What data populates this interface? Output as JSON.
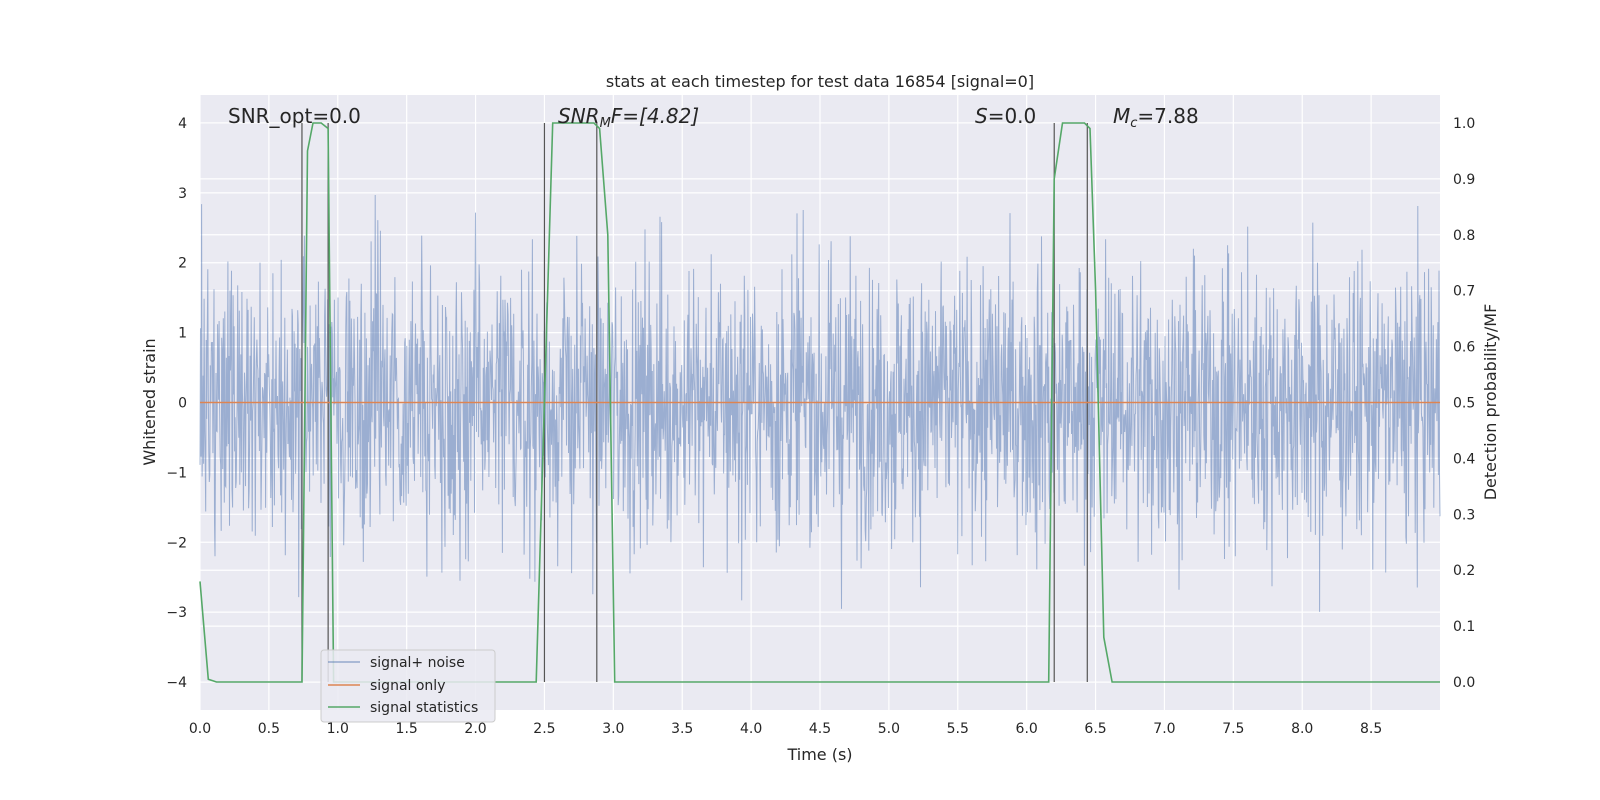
{
  "chart_data": {
    "type": "line",
    "title": "stats at each timestep for test data 16854 [signal=0]",
    "xlabel": "Time (s)",
    "ylabel_left": "Whitened strain",
    "ylabel_right": "Detection probability/MF",
    "xlim": [
      0.0,
      9.0
    ],
    "ylim_left": [
      -4.4,
      4.4
    ],
    "ylim_right": [
      -0.05,
      1.05
    ],
    "x_ticks": [
      "0.0",
      "0.5",
      "1.0",
      "1.5",
      "2.0",
      "2.5",
      "3.0",
      "3.5",
      "4.0",
      "4.5",
      "5.0",
      "5.5",
      "6.0",
      "6.5",
      "7.0",
      "7.5",
      "8.0",
      "8.5"
    ],
    "y_ticks_left": [
      "−4",
      "−3",
      "−2",
      "−1",
      "0",
      "1",
      "2",
      "3",
      "4"
    ],
    "y_ticks_right": [
      "0.0",
      "0.1",
      "0.2",
      "0.3",
      "0.4",
      "0.5",
      "0.6",
      "0.7",
      "0.8",
      "0.9",
      "1.0"
    ],
    "grid": true,
    "legend_position": "lower-left",
    "colors": {
      "background": "#eaeaf2",
      "signal_noise": "#4c72b0",
      "signal_only": "#dd8452",
      "signal_statistics": "#55a868",
      "markers": "#555555"
    },
    "annotations": {
      "snr_opt": "SNR_opt=0.0",
      "snr_mf_prefix": "SNR",
      "snr_mf_sub": "M",
      "snr_mf_rest": "F=[4.82]",
      "s_italic": "S",
      "s_rest": "=0.0",
      "mc_italic": "M",
      "mc_sub": "c",
      "mc_rest": "=7.88"
    },
    "series": [
      {
        "name": "signal+ noise",
        "kind": "noise",
        "duration_s": 9.0,
        "envelope_sigma": 1.0,
        "display_range": [
          -3.4,
          3.9
        ]
      },
      {
        "name": "signal only",
        "kind": "line",
        "x": [
          0.0,
          9.0
        ],
        "y": [
          0.0,
          0.0
        ]
      },
      {
        "name": "signal statistics",
        "kind": "line",
        "axis": "right",
        "x": [
          0.0,
          0.06,
          0.12,
          0.2,
          0.74,
          0.78,
          0.82,
          0.88,
          0.93,
          0.97,
          1.0,
          2.4,
          2.44,
          2.5,
          2.56,
          2.86,
          2.9,
          2.96,
          3.01,
          6.12,
          6.16,
          6.2,
          6.26,
          6.42,
          6.46,
          6.5,
          6.56,
          6.62,
          6.7,
          9.0
        ],
        "y": [
          0.18,
          0.005,
          0.0,
          0.0,
          0.0,
          0.95,
          1.0,
          1.0,
          0.99,
          0.0,
          0.0,
          0.0,
          0.0,
          0.5,
          1.0,
          1.0,
          0.99,
          0.8,
          0.0,
          0.0,
          0.0,
          0.9,
          1.0,
          1.0,
          0.99,
          0.7,
          0.08,
          0.0,
          0.0,
          0.0
        ]
      }
    ],
    "vertical_markers_x": [
      0.74,
      0.93,
      2.5,
      2.88,
      6.2,
      6.44
    ]
  }
}
